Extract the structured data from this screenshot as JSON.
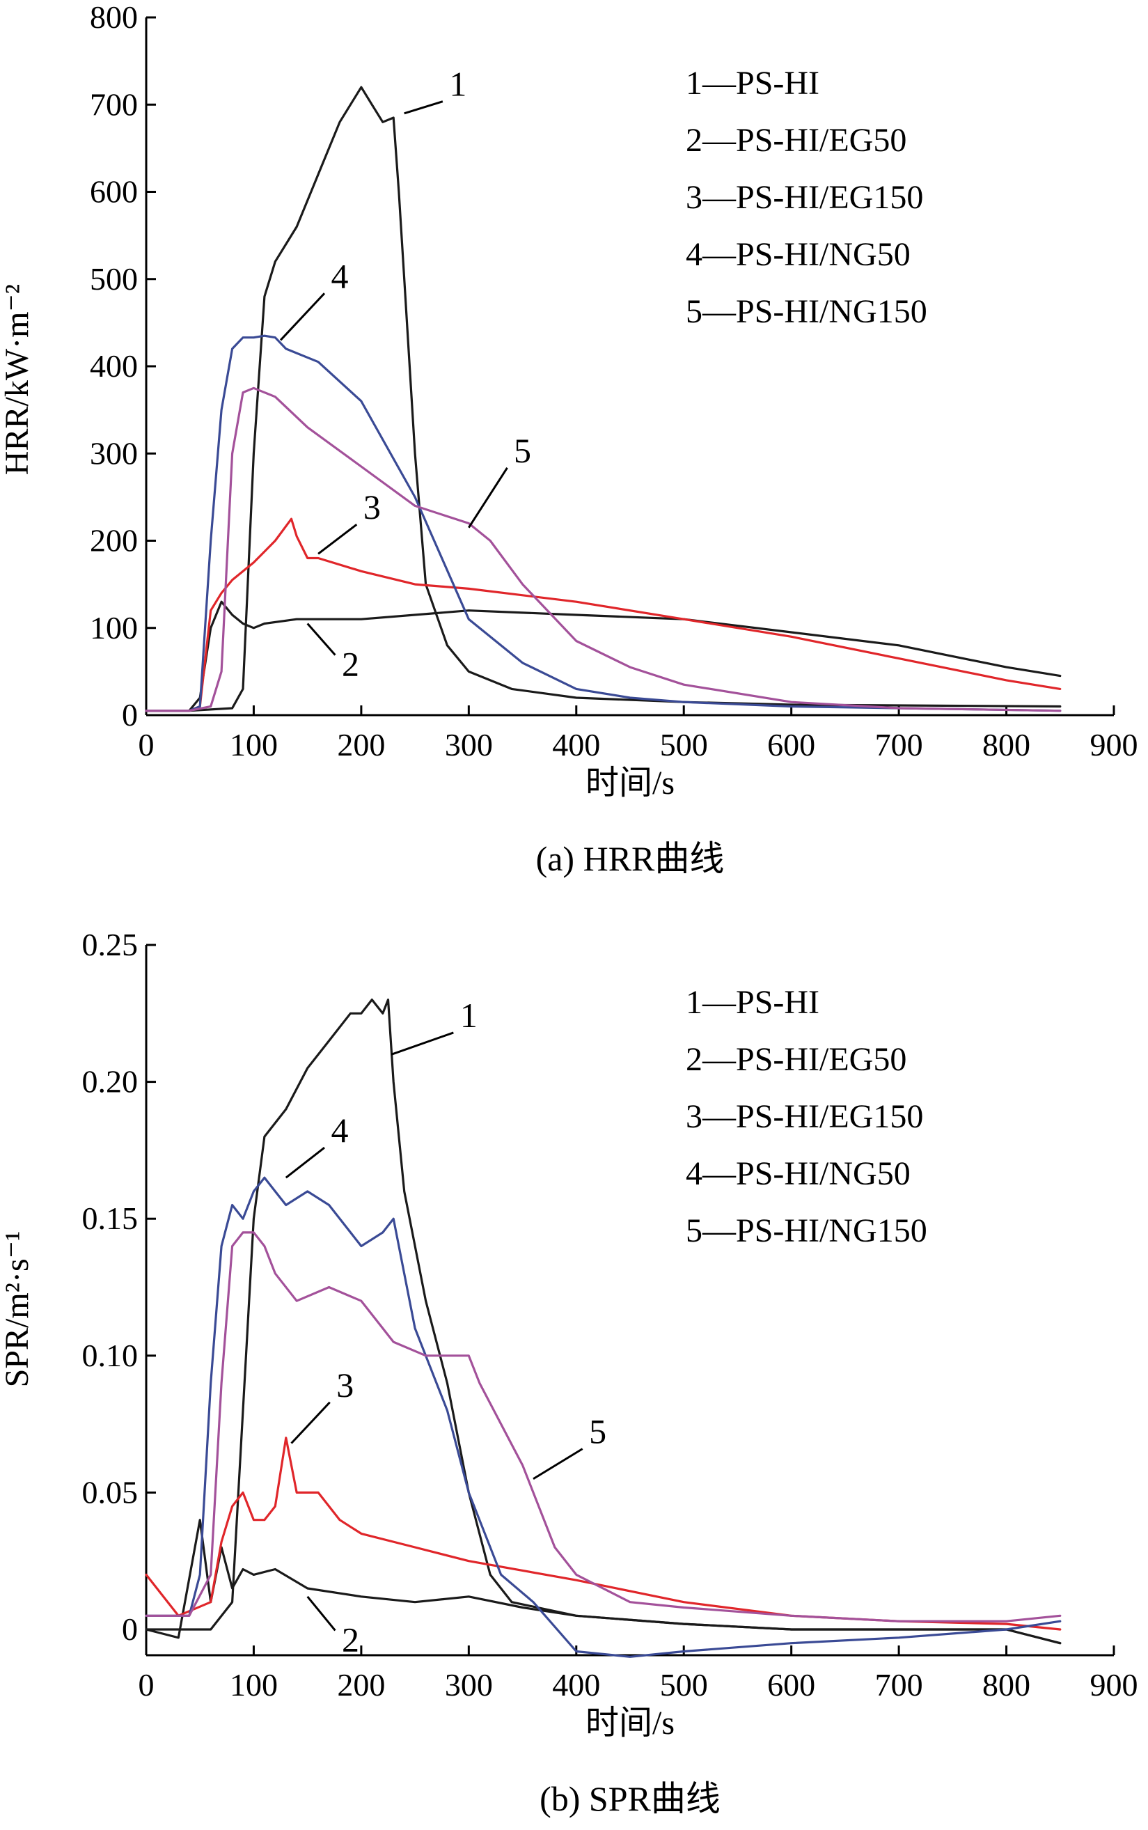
{
  "colors": {
    "s1": "#1a1a1a",
    "s2": "#1a1a1a",
    "s3": "#e0262a",
    "s4": "#3a4a95",
    "s5": "#a3519a"
  },
  "chart_data": [
    {
      "type": "line",
      "caption": "(a) HRR曲线",
      "xlabel": "时间/s",
      "ylabel": "HRR/kW·m⁻²",
      "xlim": [
        0,
        900
      ],
      "ylim": [
        0,
        800
      ],
      "xticks": [
        "0",
        "100",
        "200",
        "300",
        "400",
        "500",
        "600",
        "700",
        "800",
        "900"
      ],
      "yticks": [
        "0",
        "100",
        "200",
        "300",
        "400",
        "500",
        "600",
        "700",
        "800"
      ],
      "legend": [
        "1—PS-HI",
        "2—PS-HI/EG50",
        "3—PS-HI/EG150",
        "4—PS-HI/NG50",
        "5—PS-HI/NG150"
      ],
      "legend_position": "top-right",
      "grid": false,
      "series": [
        {
          "name": "1",
          "color_key": "s1",
          "x": [
            0,
            40,
            80,
            90,
            100,
            110,
            120,
            140,
            160,
            180,
            200,
            210,
            220,
            230,
            235,
            240,
            250,
            260,
            280,
            300,
            340,
            400,
            500,
            600,
            850
          ],
          "y": [
            5,
            5,
            8,
            30,
            300,
            480,
            520,
            560,
            620,
            680,
            720,
            700,
            680,
            685,
            600,
            500,
            300,
            150,
            80,
            50,
            30,
            20,
            15,
            12,
            10
          ]
        },
        {
          "name": "2",
          "color_key": "s2",
          "x": [
            0,
            40,
            50,
            60,
            70,
            80,
            90,
            100,
            110,
            140,
            200,
            300,
            400,
            500,
            600,
            700,
            800,
            850
          ],
          "y": [
            5,
            5,
            20,
            100,
            130,
            115,
            105,
            100,
            105,
            110,
            110,
            120,
            115,
            110,
            95,
            80,
            55,
            45
          ]
        },
        {
          "name": "3",
          "color_key": "s3",
          "x": [
            0,
            40,
            50,
            60,
            70,
            80,
            100,
            120,
            135,
            140,
            150,
            160,
            200,
            250,
            300,
            400,
            500,
            600,
            700,
            800,
            850
          ],
          "y": [
            5,
            5,
            10,
            120,
            140,
            155,
            175,
            200,
            225,
            205,
            180,
            180,
            165,
            150,
            145,
            130,
            110,
            90,
            65,
            40,
            30
          ]
        },
        {
          "name": "4",
          "color_key": "s4",
          "x": [
            0,
            40,
            50,
            60,
            70,
            80,
            90,
            100,
            110,
            120,
            130,
            160,
            200,
            250,
            300,
            350,
            400,
            450,
            500,
            600,
            700,
            850
          ],
          "y": [
            5,
            5,
            10,
            200,
            350,
            420,
            433,
            433,
            435,
            433,
            420,
            405,
            360,
            250,
            110,
            60,
            30,
            20,
            15,
            10,
            8,
            5
          ]
        },
        {
          "name": "5",
          "color_key": "s5",
          "x": [
            0,
            40,
            60,
            70,
            80,
            90,
            100,
            120,
            150,
            200,
            250,
            300,
            320,
            350,
            400,
            450,
            500,
            600,
            700,
            850
          ],
          "y": [
            5,
            5,
            10,
            50,
            300,
            370,
            375,
            365,
            330,
            285,
            240,
            220,
            200,
            150,
            85,
            55,
            35,
            15,
            8,
            5
          ]
        }
      ],
      "annotations": [
        {
          "text": "1",
          "x": 290,
          "y": 710
        },
        {
          "text": "4",
          "x": 180,
          "y": 490
        },
        {
          "text": "3",
          "x": 210,
          "y": 225
        },
        {
          "text": "5",
          "x": 350,
          "y": 290
        },
        {
          "text": "2",
          "x": 190,
          "y": 45
        }
      ]
    },
    {
      "type": "line",
      "caption": "(b) SPR曲线",
      "xlabel": "时间/s",
      "ylabel": "SPR/m²·s⁻¹",
      "xlim": [
        0,
        900
      ],
      "ylim": [
        -0.015,
        0.25
      ],
      "xticks": [
        "0",
        "100",
        "200",
        "300",
        "400",
        "500",
        "600",
        "700",
        "800",
        "900"
      ],
      "yticks": [
        "0",
        "0.05",
        "0.10",
        "0.15",
        "0.20",
        "0.25"
      ],
      "ytick_values": [
        0,
        0.05,
        0.1,
        0.15,
        0.2,
        0.25
      ],
      "legend": [
        "1—PS-HI",
        "2—PS-HI/EG50",
        "3—PS-HI/EG150",
        "4—PS-HI/NG50",
        "5—PS-HI/NG150"
      ],
      "legend_position": "top-right",
      "grid": false,
      "series": [
        {
          "name": "1",
          "color_key": "s1",
          "x": [
            0,
            60,
            80,
            90,
            100,
            110,
            130,
            150,
            170,
            190,
            200,
            210,
            220,
            225,
            230,
            240,
            260,
            280,
            300,
            320,
            340,
            400,
            500,
            600,
            700,
            800,
            850
          ],
          "y": [
            0,
            0,
            0.01,
            0.08,
            0.15,
            0.18,
            0.19,
            0.205,
            0.215,
            0.225,
            0.225,
            0.23,
            0.225,
            0.23,
            0.2,
            0.16,
            0.12,
            0.09,
            0.05,
            0.02,
            0.01,
            0.005,
            0.002,
            0,
            0,
            0,
            -0.005
          ]
        },
        {
          "name": "2",
          "color_key": "s2",
          "x": [
            0,
            30,
            50,
            60,
            70,
            80,
            90,
            100,
            120,
            150,
            200,
            250,
            300,
            350,
            400,
            500,
            600,
            700,
            800,
            850
          ],
          "y": [
            0,
            -0.003,
            0.04,
            0.01,
            0.03,
            0.015,
            0.022,
            0.02,
            0.022,
            0.015,
            0.012,
            0.01,
            0.012,
            0.008,
            0.005,
            0.002,
            0,
            0,
            0,
            -0.005
          ]
        },
        {
          "name": "3",
          "color_key": "s3",
          "x": [
            0,
            30,
            60,
            70,
            80,
            90,
            100,
            110,
            120,
            130,
            140,
            160,
            180,
            200,
            250,
            300,
            400,
            500,
            600,
            700,
            800,
            850
          ],
          "y": [
            0.02,
            0.005,
            0.01,
            0.032,
            0.045,
            0.05,
            0.04,
            0.04,
            0.045,
            0.07,
            0.05,
            0.05,
            0.04,
            0.035,
            0.03,
            0.025,
            0.018,
            0.01,
            0.005,
            0.003,
            0.002,
            0
          ]
        },
        {
          "name": "4",
          "color_key": "s4",
          "x": [
            0,
            40,
            50,
            60,
            70,
            80,
            90,
            100,
            110,
            120,
            130,
            150,
            170,
            200,
            220,
            230,
            250,
            280,
            300,
            330,
            360,
            400,
            450,
            500,
            600,
            700,
            800,
            850
          ],
          "y": [
            0.005,
            0.005,
            0.02,
            0.09,
            0.14,
            0.155,
            0.15,
            0.16,
            0.165,
            0.16,
            0.155,
            0.16,
            0.155,
            0.14,
            0.145,
            0.15,
            0.11,
            0.08,
            0.05,
            0.02,
            0.01,
            -0.008,
            -0.01,
            -0.008,
            -0.005,
            -0.003,
            0,
            0.003
          ]
        },
        {
          "name": "5",
          "color_key": "s5",
          "x": [
            0,
            40,
            60,
            70,
            80,
            90,
            100,
            110,
            120,
            140,
            170,
            200,
            230,
            260,
            280,
            300,
            310,
            330,
            350,
            380,
            400,
            450,
            500,
            600,
            700,
            800,
            850
          ],
          "y": [
            0.005,
            0.005,
            0.02,
            0.09,
            0.14,
            0.145,
            0.145,
            0.14,
            0.13,
            0.12,
            0.125,
            0.12,
            0.105,
            0.1,
            0.1,
            0.1,
            0.09,
            0.075,
            0.06,
            0.03,
            0.02,
            0.01,
            0.008,
            0.005,
            0.003,
            0.003,
            0.005
          ]
        }
      ],
      "annotations": [
        {
          "text": "1",
          "x": 300,
          "y": 0.22
        },
        {
          "text": "4",
          "x": 180,
          "y": 0.178
        },
        {
          "text": "3",
          "x": 185,
          "y": 0.085
        },
        {
          "text": "5",
          "x": 420,
          "y": 0.068
        },
        {
          "text": "2",
          "x": 190,
          "y": -0.008
        }
      ]
    }
  ]
}
